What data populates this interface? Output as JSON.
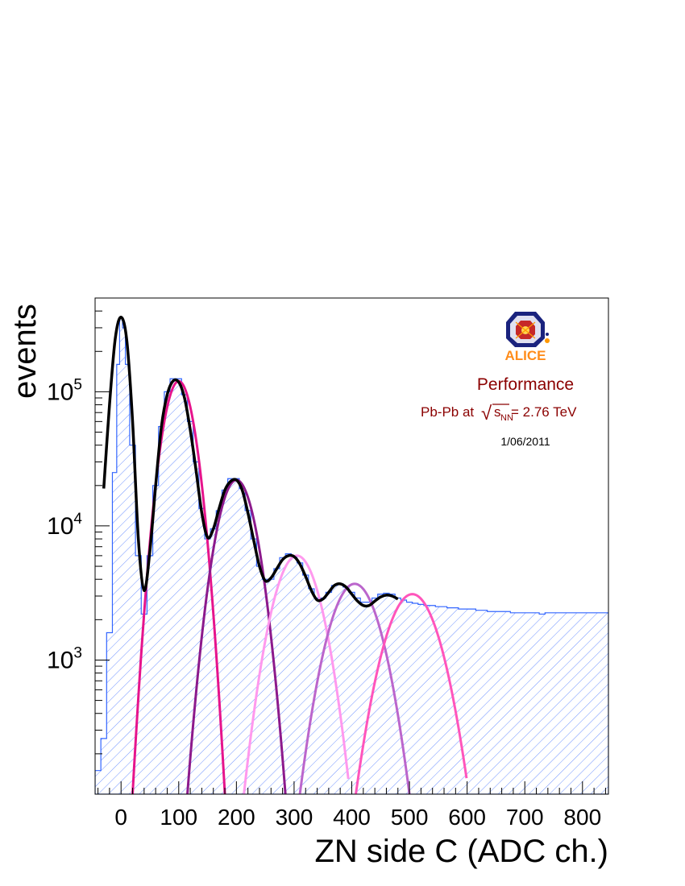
{
  "chart_data": {
    "type": "histogram",
    "xlabel": "ZN side C (ADC ch.)",
    "ylabel": "events",
    "y_log_scale": true,
    "xlim": [
      -45,
      845
    ],
    "ylim": [
      100,
      500000
    ],
    "x_tick_labels": [
      "0",
      "100",
      "200",
      "300",
      "400",
      "500",
      "600",
      "700",
      "800"
    ],
    "x_tick_values": [
      0,
      100,
      200,
      300,
      400,
      500,
      600,
      700,
      800
    ],
    "y_tick_values": [
      1000,
      10000,
      100000
    ],
    "y_tick_labels": [
      {
        "base": "10",
        "exp": "3"
      },
      {
        "base": "10",
        "exp": "4"
      },
      {
        "base": "10",
        "exp": "5"
      }
    ],
    "histogram": {
      "line_color": "#3366ff",
      "hatch_color": "#3366ff",
      "bin_width": 10,
      "points": [
        [
          -40,
          150
        ],
        [
          -30,
          260
        ],
        [
          -20,
          1600
        ],
        [
          -10,
          25000
        ],
        [
          -5,
          160000
        ],
        [
          0,
          360000
        ],
        [
          5,
          300000
        ],
        [
          10,
          160000
        ],
        [
          20,
          40000
        ],
        [
          30,
          6000
        ],
        [
          40,
          2200
        ],
        [
          50,
          6000
        ],
        [
          60,
          20000
        ],
        [
          70,
          55000
        ],
        [
          80,
          100000
        ],
        [
          90,
          125000
        ],
        [
          100,
          125000
        ],
        [
          110,
          95000
        ],
        [
          120,
          60000
        ],
        [
          130,
          30000
        ],
        [
          140,
          13500
        ],
        [
          150,
          8000
        ],
        [
          160,
          9500
        ],
        [
          170,
          13000
        ],
        [
          180,
          18500
        ],
        [
          190,
          22500
        ],
        [
          200,
          22500
        ],
        [
          210,
          19000
        ],
        [
          220,
          13000
        ],
        [
          230,
          8000
        ],
        [
          240,
          5000
        ],
        [
          250,
          4000
        ],
        [
          260,
          4000
        ],
        [
          270,
          4800
        ],
        [
          280,
          5800
        ],
        [
          290,
          6200
        ],
        [
          300,
          6000
        ],
        [
          310,
          5300
        ],
        [
          320,
          4300
        ],
        [
          330,
          3400
        ],
        [
          340,
          2900
        ],
        [
          350,
          2900
        ],
        [
          360,
          3200
        ],
        [
          370,
          3600
        ],
        [
          380,
          3700
        ],
        [
          390,
          3500
        ],
        [
          400,
          3200
        ],
        [
          410,
          2900
        ],
        [
          420,
          2700
        ],
        [
          430,
          2700
        ],
        [
          440,
          2900
        ],
        [
          450,
          3100
        ],
        [
          460,
          3150
        ],
        [
          470,
          3100
        ],
        [
          480,
          2900
        ],
        [
          490,
          2800
        ],
        [
          500,
          2700
        ],
        [
          510,
          2650
        ],
        [
          520,
          2600
        ],
        [
          530,
          2550
        ],
        [
          540,
          2550
        ],
        [
          550,
          2500
        ],
        [
          560,
          2500
        ],
        [
          570,
          2450
        ],
        [
          580,
          2450
        ],
        [
          590,
          2400
        ],
        [
          600,
          2400
        ],
        [
          610,
          2400
        ],
        [
          620,
          2350
        ],
        [
          630,
          2350
        ],
        [
          640,
          2300
        ],
        [
          650,
          2300
        ],
        [
          660,
          2300
        ],
        [
          670,
          2300
        ],
        [
          680,
          2250
        ],
        [
          690,
          2250
        ],
        [
          700,
          2250
        ],
        [
          710,
          2250
        ],
        [
          720,
          2250
        ],
        [
          730,
          2200
        ],
        [
          740,
          2250
        ],
        [
          750,
          2250
        ],
        [
          760,
          2250
        ],
        [
          770,
          2250
        ],
        [
          780,
          2250
        ],
        [
          790,
          2250
        ],
        [
          800,
          2250
        ],
        [
          810,
          2250
        ],
        [
          820,
          2250
        ],
        [
          830,
          2250
        ],
        [
          840,
          2250
        ]
      ]
    },
    "fit_components": [
      {
        "color": "#000000",
        "mean": 0,
        "amplitude": 360000,
        "x_range": [
          -30,
          30
        ],
        "parabola_halfwidth_at_1e2": 25
      },
      {
        "color": "#e6148c",
        "mean": 100,
        "amplitude": 120000,
        "x_range": [
          20,
          180
        ],
        "parabola_halfwidth_at_1e2": 80
      },
      {
        "color": "#8c1a8c",
        "mean": 200,
        "amplitude": 22000,
        "x_range": [
          115,
          290
        ],
        "parabola_halfwidth_at_1e2": 85
      },
      {
        "color": "#ff99ee",
        "mean": 305,
        "amplitude": 6000,
        "x_range": [
          210,
          395
        ],
        "parabola_halfwidth_at_1e2": 92
      },
      {
        "color": "#bb66cc",
        "mean": 405,
        "amplitude": 3700,
        "x_range": [
          310,
          500
        ],
        "parabola_halfwidth_at_1e2": 95
      },
      {
        "color": "#ff55bb",
        "mean": 505,
        "amplitude": 3100,
        "x_range": [
          405,
          600
        ],
        "parabola_halfwidth_at_1e2": 98
      }
    ],
    "total_fit": {
      "color": "#000000",
      "points": [
        [
          -30,
          19000
        ],
        [
          -20,
          80000
        ],
        [
          -10,
          250000
        ],
        [
          0,
          360000
        ],
        [
          10,
          240000
        ],
        [
          20,
          60000
        ],
        [
          30,
          8000
        ],
        [
          40,
          3300
        ],
        [
          50,
          6500
        ],
        [
          60,
          20000
        ],
        [
          70,
          55000
        ],
        [
          80,
          95000
        ],
        [
          90,
          120000
        ],
        [
          100,
          118000
        ],
        [
          110,
          90000
        ],
        [
          120,
          52000
        ],
        [
          130,
          26000
        ],
        [
          140,
          12500
        ],
        [
          150,
          8200
        ],
        [
          160,
          9500
        ],
        [
          170,
          13500
        ],
        [
          180,
          18500
        ],
        [
          190,
          21500
        ],
        [
          200,
          22000
        ],
        [
          210,
          18500
        ],
        [
          220,
          12500
        ],
        [
          230,
          7800
        ],
        [
          240,
          5000
        ],
        [
          250,
          3900
        ],
        [
          260,
          4100
        ],
        [
          270,
          4800
        ],
        [
          280,
          5600
        ],
        [
          290,
          6000
        ],
        [
          300,
          5900
        ],
        [
          310,
          5200
        ],
        [
          320,
          4200
        ],
        [
          330,
          3300
        ],
        [
          340,
          2800
        ],
        [
          350,
          2850
        ],
        [
          360,
          3200
        ],
        [
          370,
          3600
        ],
        [
          380,
          3700
        ],
        [
          390,
          3500
        ],
        [
          400,
          3100
        ],
        [
          410,
          2750
        ],
        [
          420,
          2550
        ],
        [
          430,
          2550
        ],
        [
          440,
          2750
        ],
        [
          450,
          2950
        ],
        [
          460,
          3050
        ],
        [
          470,
          3000
        ],
        [
          480,
          2850
        ]
      ]
    }
  },
  "annotations": {
    "performance": "Performance",
    "collision_prefix": "Pb-Pb at",
    "sqrt_symbol": "√",
    "sqrt_s": "s",
    "sqrt_sub": "NN",
    "collision_suffix": " = 2.76 TeV",
    "date": "1/06/2011",
    "logo_text": "ALICE",
    "text_color": "#8b0000"
  }
}
